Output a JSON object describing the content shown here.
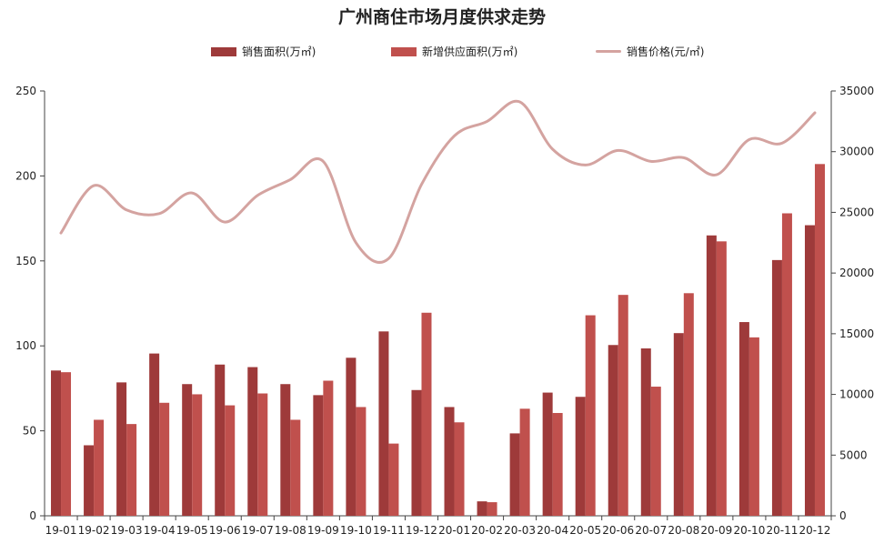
{
  "chart_data": {
    "type": "bar",
    "title": "广州商住市场月度供求走势",
    "categories": [
      "19-01",
      "19-02",
      "19-03",
      "19-04",
      "19-05",
      "19-06",
      "19-07",
      "19-08",
      "19-09",
      "19-10",
      "19-11",
      "19-12",
      "20-01",
      "20-02",
      "20-03",
      "20-04",
      "20-05",
      "20-06",
      "20-07",
      "20-08",
      "20-09",
      "20-10",
      "20-11",
      "20-12"
    ],
    "series": [
      {
        "name": "销售面积(万㎡)",
        "type": "bar",
        "axis": "left",
        "color": "#9e3a3a",
        "values": [
          85.5,
          41.5,
          78.5,
          95.5,
          77.5,
          89,
          87.5,
          77.5,
          71,
          93,
          108.5,
          74,
          64,
          8.5,
          48.5,
          72.5,
          70,
          100.5,
          98.5,
          107.5,
          165,
          114,
          150.5,
          171
        ]
      },
      {
        "name": "新增供应面积(万㎡)",
        "type": "bar",
        "axis": "left",
        "color": "#c0504d",
        "values": [
          84.5,
          56.5,
          54,
          66.5,
          71.5,
          65,
          72,
          56.5,
          79.5,
          64,
          42.5,
          119.5,
          55,
          8,
          63,
          60.5,
          118,
          130,
          76,
          131,
          161.5,
          105,
          178,
          207
        ]
      },
      {
        "name": "销售价格(元/㎡)",
        "type": "line",
        "axis": "right",
        "color": "#d4a3a0",
        "values": [
          23300,
          27200,
          25200,
          24900,
          26600,
          24200,
          26400,
          27700,
          29200,
          22500,
          21200,
          27300,
          31300,
          32500,
          34100,
          30200,
          28900,
          30100,
          29200,
          29500,
          28100,
          31000,
          30700,
          33200
        ]
      }
    ],
    "y_left": {
      "min": 0,
      "max": 250,
      "ticks": [
        0,
        50,
        100,
        150,
        200,
        250
      ]
    },
    "y_right": {
      "min": 0,
      "max": 35000,
      "ticks": [
        0,
        5000,
        10000,
        15000,
        20000,
        25000,
        30000,
        35000
      ]
    },
    "legend_position": "top-center",
    "grid": false
  }
}
